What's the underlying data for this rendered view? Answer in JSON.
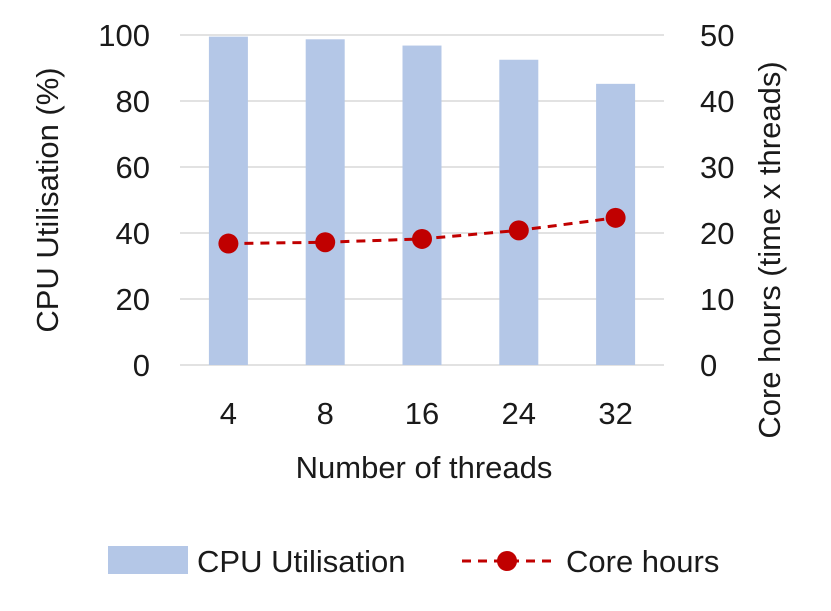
{
  "chart_data": {
    "type": "bar",
    "title": "",
    "xlabel": "Number of threads",
    "ylabel": "CPU Utilisation (%)",
    "y2label": "Core hours (time x threads)",
    "categories": [
      "4",
      "8",
      "16",
      "24",
      "32"
    ],
    "ylim": [
      0,
      100
    ],
    "y2lim": [
      0,
      50
    ],
    "yticks": [
      "0",
      "20",
      "40",
      "60",
      "80",
      "100"
    ],
    "y2ticks": [
      "0",
      "10",
      "20",
      "30",
      "40",
      "50"
    ],
    "grid": true,
    "legend_position": "bottom",
    "series": [
      {
        "name": "CPU Utilisation",
        "type": "bar",
        "axis": "left",
        "color": "#b4c7e7",
        "values": [
          99.5,
          98.7,
          96.8,
          92.5,
          85.2
        ]
      },
      {
        "name": "Core hours",
        "type": "line",
        "axis": "right",
        "color": "#c00000",
        "line_style": "dashed",
        "marker": "circle",
        "values": [
          18.4,
          18.6,
          19.1,
          20.4,
          22.3
        ]
      }
    ]
  }
}
